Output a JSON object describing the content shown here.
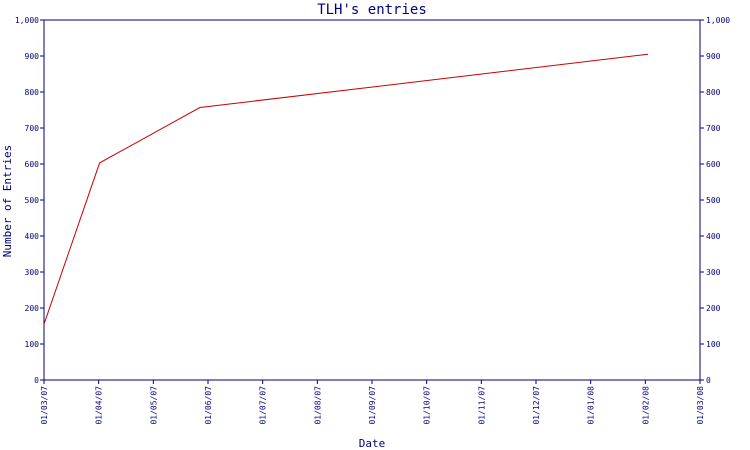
{
  "chart_data": {
    "type": "line",
    "title": "TLH's entries",
    "xlabel": "Date",
    "ylabel": "Number of Entries",
    "x_tick_labels": [
      "01/03/07",
      "01/04/07",
      "01/05/07",
      "01/06/07",
      "01/07/07",
      "01/08/07",
      "01/09/07",
      "01/10/07",
      "01/11/07",
      "01/12/07",
      "01/01/08",
      "01/02/08",
      "01/03/08"
    ],
    "y_tick_labels": [
      "0",
      "100",
      "200",
      "300",
      "400",
      "500",
      "600",
      "700",
      "800",
      "900",
      "1,000"
    ],
    "ylim": [
      0,
      1000
    ],
    "xlim": [
      "2007-03-01",
      "2008-03-01"
    ],
    "grid": false,
    "series": [
      {
        "color": "#cc0000",
        "points": [
          {
            "x": "2007-03-01",
            "y": 155
          },
          {
            "x": "2007-04-01",
            "y": 603
          },
          {
            "x": "2007-05-27",
            "y": 757
          },
          {
            "x": "2008-02-01",
            "y": 905
          }
        ]
      }
    ]
  },
  "colors": {
    "axis": "#000080",
    "series": "#cc0000",
    "background": "#ffffff"
  }
}
